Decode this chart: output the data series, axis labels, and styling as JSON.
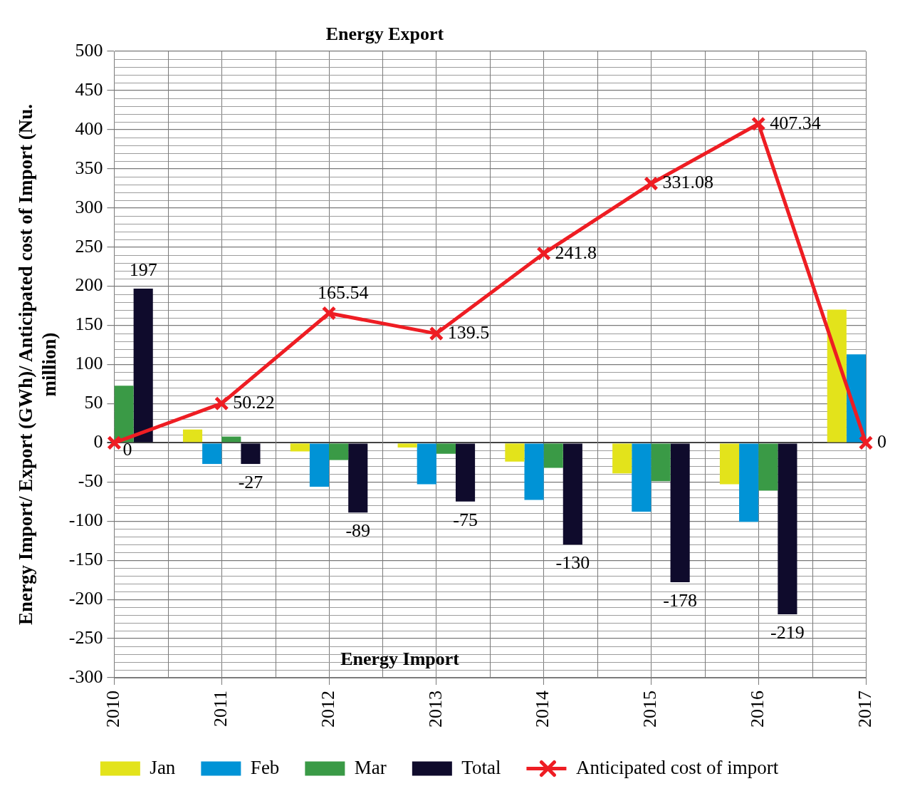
{
  "chart_data": {
    "type": "bar",
    "ylabel": "Energy Import/ Export (GWh)/ Anticipated cost of Import (Nu. million)",
    "annotations": [
      "Energy Export",
      "Energy Import"
    ],
    "categories": [
      "2010",
      "2011",
      "2012",
      "2013",
      "2014",
      "2015",
      "2016",
      "2017"
    ],
    "series": [
      {
        "name": "Jan",
        "color": "#e3e31b",
        "values": [
          null,
          17,
          -11,
          -6,
          -24,
          -39,
          -53,
          170
        ]
      },
      {
        "name": "Feb",
        "color": "#0093d6",
        "values": [
          null,
          -27,
          -56,
          -53,
          -73,
          -88,
          -101,
          113
        ]
      },
      {
        "name": "Mar",
        "color": "#3a9a46",
        "values": [
          73,
          8,
          -22,
          -14,
          -32,
          -49,
          -61,
          null
        ]
      },
      {
        "name": "Total",
        "color": "#0f0b2c",
        "values": [
          197,
          -27,
          -89,
          -75,
          -130,
          -178,
          -219,
          null
        ],
        "value_labels": [
          "197",
          "-27",
          "-89",
          "-75",
          "-130",
          "-178",
          "-219",
          null
        ]
      },
      {
        "name": "Anticipated cost of import",
        "type": "line",
        "color": "#ee1d23",
        "values": [
          0,
          50.22,
          165.54,
          139.5,
          241.8,
          331.08,
          407.34,
          0
        ],
        "value_labels": [
          "0",
          "50.22",
          "165.54",
          "139.5",
          "241.8",
          "331.08",
          "407.34",
          "0"
        ]
      }
    ],
    "ylim": [
      -300,
      500
    ],
    "yticks": [
      -300,
      -250,
      -200,
      -150,
      -100,
      -50,
      0,
      50,
      100,
      150,
      200,
      250,
      300,
      350,
      400,
      450,
      500
    ],
    "grid": true,
    "legend": "bottom",
    "marker": "cross"
  }
}
